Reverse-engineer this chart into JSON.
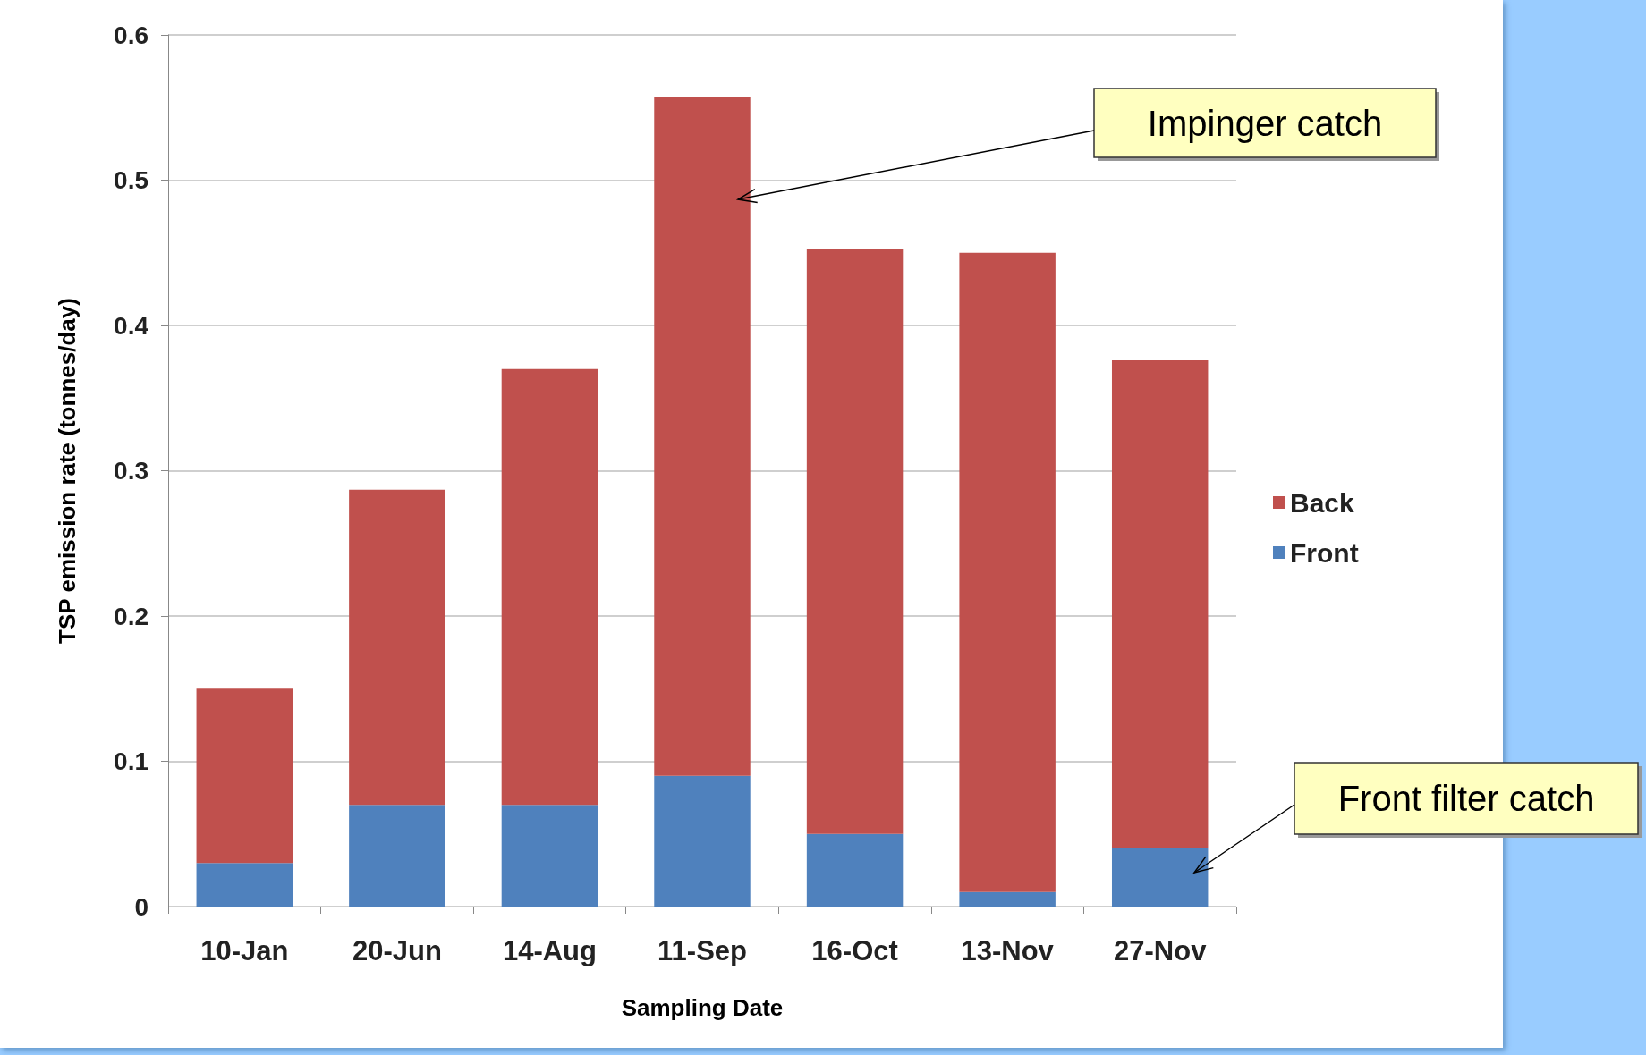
{
  "chart_data": {
    "type": "bar",
    "stacked": true,
    "xlabel": "Sampling Date",
    "ylabel": "TSP emission rate (tonnes/day)",
    "categories": [
      "10-Jan",
      "20-Jun",
      "14-Aug",
      "11-Sep",
      "16-Oct",
      "13-Nov",
      "27-Nov"
    ],
    "series": [
      {
        "name": "Front",
        "color": "#4f81bd",
        "values": [
          0.03,
          0.07,
          0.07,
          0.09,
          0.05,
          0.01,
          0.04
        ]
      },
      {
        "name": "Back",
        "color": "#c0504d",
        "values": [
          0.12,
          0.217,
          0.3,
          0.467,
          0.403,
          0.44,
          0.336
        ]
      }
    ],
    "ylim": [
      0,
      0.6
    ],
    "yticks": [
      0,
      0.1,
      0.2,
      0.3,
      0.4,
      0.5,
      0.6
    ],
    "grid": "y",
    "legend": "right",
    "annotations": [
      "Impinger catch",
      "Front filter catch"
    ]
  }
}
